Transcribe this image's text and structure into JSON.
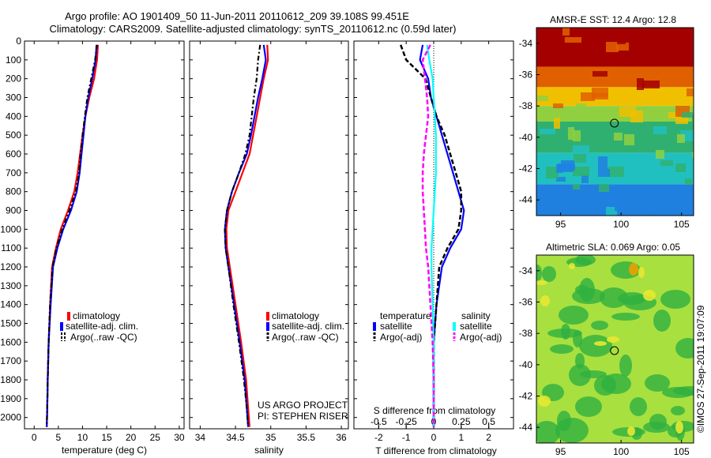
{
  "title_line1": "Argo profile: AO 1901409_50 11-Jun-2011 20110612_209 39.108S 99.451E",
  "title_line2": "Climatology: CARS2009. Satellite-adjusted climatology: synTS_20110612.nc (0.59d later)",
  "colors": {
    "clim": "#ff0000",
    "sat": "#0000ff",
    "argo": "#000000",
    "sat_s": "#00ffff",
    "argo_s": "#ff00ff"
  },
  "depth_ticks": [
    "0",
    "100",
    "200",
    "300",
    "400",
    "500",
    "600",
    "700",
    "800",
    "900",
    "1000",
    "1100",
    "1200",
    "1300",
    "1400",
    "1500",
    "1600",
    "1700",
    "1800",
    "1900",
    "2000"
  ],
  "legend": {
    "climatology": "climatology",
    "satellite_adj": "satellite-adj. clim.",
    "argo": "Argo(..raw -QC)"
  },
  "diff_legend": {
    "temperature": "temperature",
    "salinity": "salinity",
    "satellite": "satellite",
    "argo_adj": "Argo(-adj)"
  },
  "credit": {
    "line1": "US ARGO PROJECT",
    "line2": "PI: STEPHEN RISER"
  },
  "imos_stamp": "©IMOS 27-Sep-2011 19:07:09",
  "map1": {
    "title": "AMSR-E SST: 12.4 Argo: 12.8",
    "yticks": [
      "-34",
      "-36",
      "-38",
      "-40",
      "-42",
      "-44"
    ],
    "xticks": [
      "95",
      "100",
      "105"
    ]
  },
  "map2": {
    "title": "Altimetric SLA: 0.069 Argo: 0.05",
    "yticks": [
      "-34",
      "-36",
      "-38",
      "-40",
      "-42",
      "-44"
    ],
    "xticks": [
      "95",
      "100",
      "105"
    ]
  },
  "chart_data": [
    {
      "type": "line",
      "xlabel": "temperature (deg C)",
      "xticks": [
        "0",
        "5",
        "10",
        "15",
        "20",
        "25",
        "30"
      ],
      "xlim": [
        -2,
        31
      ],
      "ylim": [
        2060,
        0
      ],
      "series": [
        {
          "name": "climatology",
          "x": [
            13.2,
            13.0,
            12.4,
            11.4,
            10.6,
            10.0,
            9.5,
            9.0,
            8.3,
            7.0,
            5.5,
            4.5,
            3.7,
            3.3,
            3.0,
            2.8,
            2.7,
            2.6
          ],
          "y": [
            20,
            100,
            200,
            300,
            400,
            500,
            600,
            700,
            800,
            900,
            1000,
            1100,
            1200,
            1400,
            1600,
            1800,
            1950,
            2050
          ]
        },
        {
          "name": "satellite-adj. clim.",
          "x": [
            12.9,
            12.7,
            12.0,
            11.2,
            10.6,
            10.2,
            9.8,
            9.4,
            8.8,
            7.6,
            6.0,
            4.8,
            3.9,
            3.4,
            3.0,
            2.8,
            2.7,
            2.6
          ],
          "y": [
            20,
            100,
            200,
            300,
            400,
            500,
            600,
            700,
            800,
            900,
            1000,
            1100,
            1200,
            1400,
            1600,
            1800,
            1950,
            2050
          ]
        },
        {
          "name": "Argo(..raw -QC)",
          "x": [
            13.0,
            12.6,
            11.8,
            11.0,
            10.5,
            10.0,
            9.6,
            9.3,
            8.6,
            7.3,
            5.8,
            4.6,
            3.8,
            3.3,
            3.0,
            2.8,
            2.7,
            2.6
          ],
          "y": [
            20,
            100,
            200,
            300,
            400,
            500,
            600,
            700,
            800,
            900,
            1000,
            1100,
            1200,
            1400,
            1600,
            1800,
            1950,
            2050
          ]
        }
      ]
    },
    {
      "type": "line",
      "xlabel": "salinity",
      "xticks": [
        "34",
        "34.5",
        "35",
        "35.5",
        "36"
      ],
      "xlim": [
        33.85,
        36.1
      ],
      "ylim": [
        2060,
        0
      ],
      "series": [
        {
          "name": "climatology",
          "x": [
            34.95,
            34.96,
            34.9,
            34.85,
            34.8,
            34.75,
            34.7,
            34.6,
            34.5,
            34.4,
            34.37,
            34.38,
            34.42,
            34.5,
            34.58,
            34.65,
            34.68,
            34.7
          ],
          "y": [
            20,
            100,
            200,
            300,
            400,
            500,
            600,
            700,
            800,
            900,
            1000,
            1100,
            1200,
            1400,
            1600,
            1800,
            1950,
            2050
          ]
        },
        {
          "name": "satellite-adj. clim.",
          "x": [
            34.9,
            34.93,
            34.88,
            34.82,
            34.77,
            34.72,
            34.66,
            34.55,
            34.45,
            34.38,
            34.35,
            34.36,
            34.4,
            34.48,
            34.56,
            34.63,
            34.66,
            34.68
          ],
          "y": [
            20,
            100,
            200,
            300,
            400,
            500,
            600,
            700,
            800,
            900,
            1000,
            1100,
            1200,
            1400,
            1600,
            1800,
            1950,
            2050
          ]
        },
        {
          "name": "Argo(..raw -QC)",
          "x": [
            34.85,
            34.82,
            34.8,
            34.76,
            34.73,
            34.7,
            34.64,
            34.55,
            34.45,
            34.38,
            34.35,
            34.36,
            34.4,
            34.47,
            34.55,
            34.62,
            34.66,
            34.68
          ],
          "y": [
            20,
            100,
            200,
            300,
            400,
            500,
            600,
            700,
            800,
            900,
            1000,
            1100,
            1200,
            1400,
            1600,
            1800,
            1950,
            2050
          ]
        }
      ]
    },
    {
      "type": "line",
      "xlabel": "T difference from climatology",
      "xlabel2": "S difference from climatology",
      "xticks": [
        "-2",
        "-1",
        "0",
        "1",
        "2"
      ],
      "xticks2": [
        "-0.5",
        "-0.25",
        "0",
        "0.25",
        "0.5"
      ],
      "xlim": [
        -2.9,
        2.9
      ],
      "ylim": [
        2060,
        0
      ],
      "series": [
        {
          "name": "temperature satellite",
          "x": [
            -0.4,
            -0.5,
            -0.2,
            -0.1,
            0.1,
            0.3,
            0.5,
            0.7,
            0.9,
            1.1,
            1.0,
            0.6,
            0.3,
            0.1,
            0.0,
            0.0,
            0.0,
            0.0
          ],
          "y": [
            20,
            100,
            200,
            300,
            400,
            500,
            600,
            700,
            800,
            900,
            1000,
            1100,
            1200,
            1400,
            1600,
            1800,
            1950,
            2050
          ]
        },
        {
          "name": "temperature Argo(-adj)",
          "x": [
            -1.2,
            -1.0,
            -0.3,
            -0.1,
            0.1,
            0.4,
            0.6,
            0.8,
            1.0,
            1.0,
            0.9,
            0.5,
            0.2,
            0.1,
            0.0,
            0.0,
            0.0,
            0.0
          ],
          "y": [
            20,
            100,
            200,
            300,
            400,
            500,
            600,
            700,
            800,
            900,
            1000,
            1100,
            1200,
            1400,
            1600,
            1800,
            1950,
            2050
          ]
        },
        {
          "name": "salinity satellite",
          "x": [
            -0.06,
            -0.04,
            -0.01,
            0.0,
            0.01,
            0.02,
            0.02,
            0.02,
            0.01,
            0.0,
            -0.01,
            -0.02,
            -0.02,
            -0.01,
            0.0,
            0.0,
            0.0,
            0.0
          ],
          "y": [
            20,
            100,
            200,
            300,
            400,
            500,
            600,
            700,
            800,
            900,
            1000,
            1100,
            1200,
            1400,
            1600,
            1800,
            1950,
            2050
          ]
        },
        {
          "name": "salinity Argo(-adj)",
          "x": [
            -0.03,
            -0.1,
            -0.08,
            -0.06,
            -0.05,
            -0.07,
            -0.09,
            -0.1,
            -0.1,
            -0.09,
            -0.08,
            -0.07,
            -0.05,
            -0.03,
            -0.01,
            0.0,
            0.0,
            0.0
          ],
          "y": [
            20,
            100,
            200,
            300,
            400,
            500,
            600,
            700,
            800,
            900,
            1000,
            1100,
            1200,
            1400,
            1600,
            1800,
            1950,
            2050
          ]
        }
      ]
    },
    {
      "type": "heatmap",
      "title": "AMSR-E SST: 12.4 Argo: 12.8",
      "xlim": [
        93,
        106
      ],
      "ylim": [
        -45,
        -33
      ],
      "bands": [
        {
          "lat_from": -33,
          "lat_to": -35.5,
          "color": "#a50000"
        },
        {
          "lat_from": -35.5,
          "lat_to": -36.8,
          "color": "#e06000"
        },
        {
          "lat_from": -36.8,
          "lat_to": -38.0,
          "color": "#f0c000"
        },
        {
          "lat_from": -38.0,
          "lat_to": -39.0,
          "color": "#90d040"
        },
        {
          "lat_from": -39.0,
          "lat_to": -41.0,
          "color": "#30b070"
        },
        {
          "lat_from": -41.0,
          "lat_to": -43.0,
          "color": "#20c0c0"
        },
        {
          "lat_from": -43.0,
          "lat_to": -45.0,
          "color": "#2080e0"
        }
      ],
      "marker": {
        "lon": 99.45,
        "lat": -39.1
      }
    },
    {
      "type": "heatmap",
      "title": "Altimetric SLA: 0.069 Argo: 0.05",
      "xlim": [
        93,
        106
      ],
      "ylim": [
        -45,
        -33
      ],
      "base_color": "#a8e040",
      "blob_color": "#30b040",
      "marker": {
        "lon": 99.45,
        "lat": -39.1
      }
    }
  ]
}
